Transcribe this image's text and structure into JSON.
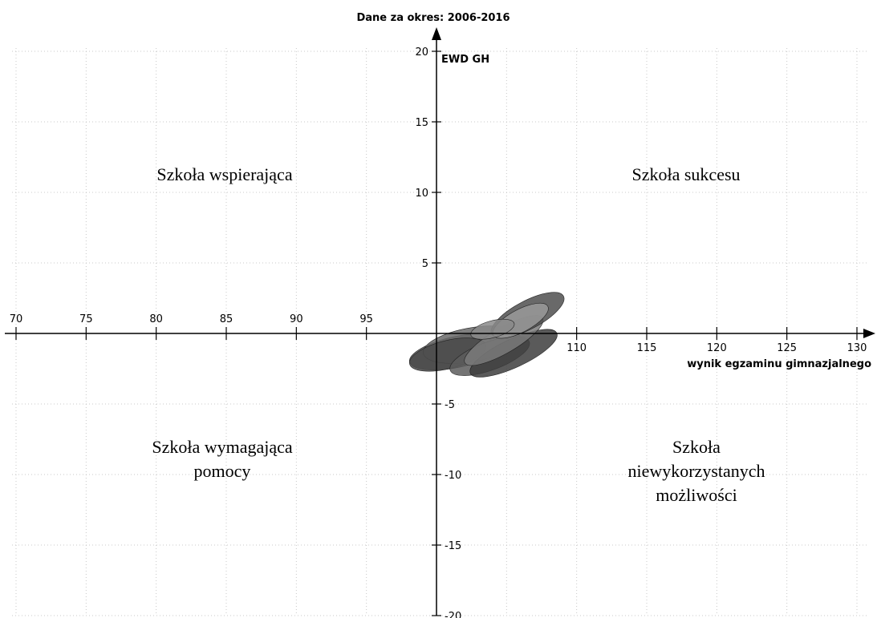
{
  "chart_data": {
    "type": "scatter",
    "title": "Dane za okres: 2006-2016",
    "xlabel": "wynik egzaminu gimnazjalnego",
    "ylabel": "EWD GH",
    "xlim": [
      70,
      130
    ],
    "ylim": [
      -20,
      20
    ],
    "x_ticks": [
      70,
      75,
      80,
      85,
      90,
      95,
      110,
      115,
      120,
      125,
      130
    ],
    "y_ticks": [
      20,
      15,
      10,
      5,
      -5,
      -10,
      -15,
      -20
    ],
    "grid": "dotted",
    "quadrant_labels": {
      "top_left": [
        "Szkoła wspierająca"
      ],
      "top_right": [
        "Szkoła sukcesu"
      ],
      "bottom_left": [
        "Szkoła wymagająca",
        "pomocy"
      ],
      "bottom_right": [
        "Szkoła",
        "niewykorzystanych",
        "możliwości"
      ]
    },
    "series": [
      {
        "values": [
          {
            "x": 101.5,
            "y": -1.3,
            "rx": 3.5,
            "ry": 1.1,
            "rotate": -12,
            "color": "#555555"
          },
          {
            "x": 102.5,
            "y": -0.8,
            "rx": 3.5,
            "ry": 1.2,
            "rotate": -10,
            "color": "#6a6a6a"
          },
          {
            "x": 100.8,
            "y": -1.5,
            "rx": 2.8,
            "ry": 1.0,
            "rotate": -14,
            "color": "#4a4a4a"
          },
          {
            "x": 103.8,
            "y": -1.6,
            "rx": 3.0,
            "ry": 1.0,
            "rotate": -20,
            "color": "#5c5c5c"
          },
          {
            "x": 105.5,
            "y": -1.4,
            "rx": 3.4,
            "ry": 1.0,
            "rotate": -25,
            "color": "#3d3d3d"
          },
          {
            "x": 104.8,
            "y": -0.5,
            "rx": 3.2,
            "ry": 0.9,
            "rotate": -30,
            "color": "#7a7a7a"
          },
          {
            "x": 106.5,
            "y": 1.3,
            "rx": 2.9,
            "ry": 1.0,
            "rotate": -28,
            "color": "#4f4f4f"
          },
          {
            "x": 106.0,
            "y": 0.9,
            "rx": 2.2,
            "ry": 0.8,
            "rotate": -28,
            "color": "#9a9a9a"
          },
          {
            "x": 104.0,
            "y": 0.3,
            "rx": 1.6,
            "ry": 0.6,
            "rotate": -15,
            "color": "#8a8a8a"
          }
        ]
      }
    ]
  }
}
